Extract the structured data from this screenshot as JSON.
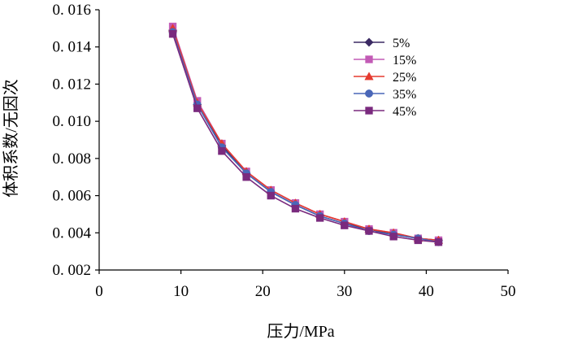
{
  "chart_data": {
    "type": "line",
    "title": "",
    "xlabel": "压力/MPa",
    "ylabel": "体积系数/无因次",
    "xlim": [
      0,
      50
    ],
    "ylim": [
      0.002,
      0.016
    ],
    "x_ticks": [
      0,
      10,
      20,
      30,
      40,
      50
    ],
    "y_ticks": [
      0.002,
      0.004,
      0.006,
      0.008,
      0.01,
      0.012,
      0.014,
      0.016
    ],
    "x_tick_labels": [
      "0",
      "10",
      "20",
      "30",
      "40",
      "50"
    ],
    "y_tick_labels": [
      "0. 002",
      "0. 004",
      "0. 006",
      "0. 008",
      "0. 010",
      "0. 012",
      "0. 014",
      "0. 016"
    ],
    "grid": false,
    "legend_position": "top-right",
    "x": [
      9,
      12,
      15,
      18,
      21,
      24,
      27,
      30,
      33,
      36,
      39,
      41.5
    ],
    "series": [
      {
        "name": "5%",
        "marker": "diamond",
        "color": "#3B2A63",
        "values": [
          0.0149,
          0.0109,
          0.0087,
          0.0072,
          0.0062,
          0.0055,
          0.0049,
          0.0045,
          0.0042,
          0.0039,
          0.0037,
          0.0036
        ]
      },
      {
        "name": "15%",
        "marker": "square",
        "color": "#C25AB5",
        "values": [
          0.0151,
          0.0111,
          0.0088,
          0.0073,
          0.0063,
          0.0056,
          0.005,
          0.0046,
          0.0042,
          0.004,
          0.0037,
          0.0036
        ]
      },
      {
        "name": "25%",
        "marker": "triangle",
        "color": "#E53A2F",
        "values": [
          0.015,
          0.011,
          0.0088,
          0.0073,
          0.0063,
          0.0056,
          0.005,
          0.0046,
          0.0042,
          0.004,
          0.0037,
          0.0036
        ]
      },
      {
        "name": "35%",
        "marker": "circle",
        "color": "#4A67B8",
        "values": [
          0.0148,
          0.0109,
          0.0086,
          0.0072,
          0.0062,
          0.0055,
          0.0049,
          0.0045,
          0.0041,
          0.0039,
          0.0037,
          0.0035
        ]
      },
      {
        "name": "45%",
        "marker": "square",
        "color": "#7A2A7E",
        "values": [
          0.0147,
          0.0107,
          0.0084,
          0.007,
          0.006,
          0.0053,
          0.0048,
          0.0044,
          0.0041,
          0.0038,
          0.0036,
          0.0035
        ]
      }
    ]
  }
}
